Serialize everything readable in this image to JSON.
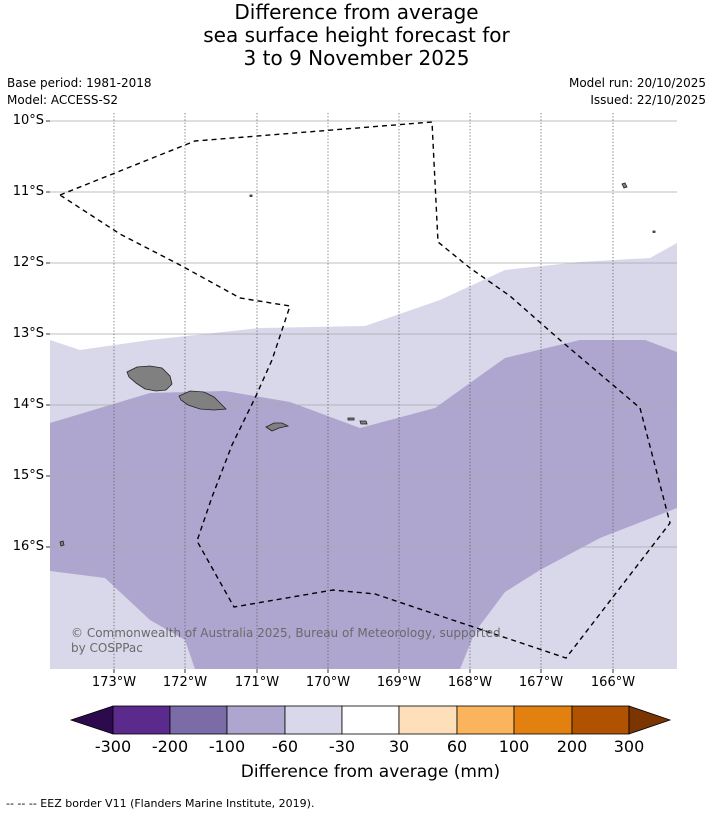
{
  "title": {
    "line1": "Difference from average",
    "line2": "sea surface height forecast for",
    "line3": "3 to 9 November 2025"
  },
  "meta": {
    "base_period": "Base period: 1981-2018",
    "model": "Model: ACCESS-S2",
    "model_run": "Model run: 20/10/2025",
    "issued": "Issued: 22/10/2025"
  },
  "map": {
    "lat_labels": [
      "10°S",
      "11°S",
      "12°S",
      "13°S",
      "14°S",
      "15°S",
      "16°S"
    ],
    "lon_labels": [
      "173°W",
      "172°W",
      "171°W",
      "170°W",
      "169°W",
      "168°W",
      "167°W",
      "166°W"
    ],
    "copyright_line1": "© Commonwealth of Australia 2025, Bureau of Meteorology, supported",
    "copyright_line2": "by COSPPac",
    "region_classes": [
      "-60 to -30",
      "-100 to -60"
    ],
    "islands": [
      "Savai'i",
      "Upolu",
      "Tutuila",
      "Manu'a"
    ]
  },
  "colorbar": {
    "title": "Difference from average (mm)",
    "tick_labels": [
      "-300",
      "-200",
      "-100",
      "-60",
      "-30",
      "30",
      "60",
      "100",
      "200",
      "300"
    ],
    "colors": [
      "#2d0a4e",
      "#5a2a8c",
      "#7b6ca8",
      "#aea6cf",
      "#d8d8ea",
      "#ffffff",
      "#fde0b9",
      "#f9b45c",
      "#e2810f",
      "#b15200",
      "#7b3500"
    ]
  },
  "footnote": "-- -- -- EEZ border V11 (Flanders Marine Institute, 2019)."
}
